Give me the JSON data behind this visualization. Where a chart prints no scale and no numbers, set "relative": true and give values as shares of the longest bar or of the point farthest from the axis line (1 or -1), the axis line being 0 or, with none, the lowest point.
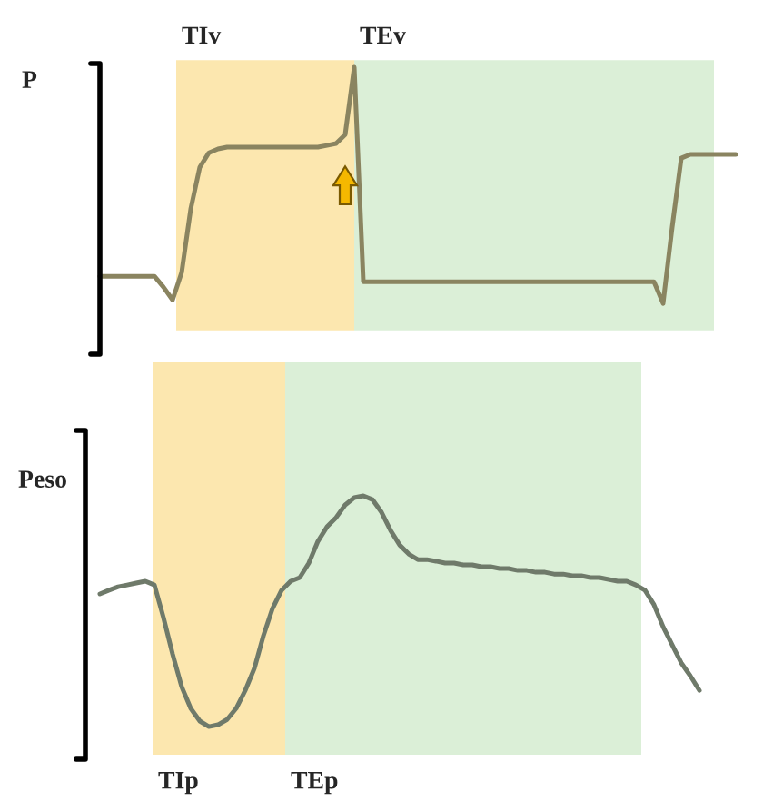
{
  "chart_data": [
    {
      "type": "line",
      "relative": true,
      "ylabel": "P",
      "annotations": [
        "TIv",
        "TEv"
      ],
      "categories": [
        null,
        null,
        null,
        null,
        null,
        null,
        null,
        null,
        null,
        null,
        null,
        null,
        null,
        null,
        null,
        null,
        null,
        null,
        null,
        null,
        null,
        null,
        null,
        null,
        null,
        null,
        null,
        null,
        null,
        null,
        null,
        null,
        null,
        null,
        null,
        null,
        null,
        null,
        null,
        null,
        null,
        null,
        null,
        null,
        null,
        null,
        null,
        null,
        null,
        null,
        null,
        null,
        null,
        null,
        null,
        null,
        null,
        null,
        null,
        null,
        null,
        null,
        null,
        null,
        null,
        null,
        null,
        null,
        null,
        null,
        null
      ],
      "series": [
        {
          "color": "#8a8460",
          "values": [
            0.115,
            0.115,
            0.115,
            0.115,
            0.115,
            0.115,
            0.115,
            0.069,
            0.015,
            0.131,
            0.4,
            0.577,
            0.638,
            0.654,
            0.662,
            0.662,
            0.662,
            0.662,
            0.662,
            0.662,
            0.662,
            0.662,
            0.662,
            0.662,
            0.662,
            0.669,
            0.677,
            0.715,
            1.0,
            0.092,
            0.092,
            0.092,
            0.092,
            0.092,
            0.092,
            0.092,
            0.092,
            0.092,
            0.092,
            0.092,
            0.092,
            0.092,
            0.092,
            0.092,
            0.092,
            0.092,
            0.092,
            0.092,
            0.092,
            0.092,
            0.092,
            0.092,
            0.092,
            0.092,
            0.092,
            0.092,
            0.092,
            0.092,
            0.092,
            0.092,
            0.092,
            0.092,
            0,
            0.323,
            0.615,
            0.631,
            0.631,
            0.631,
            0.631,
            0.631,
            0.631
          ]
        }
      ]
    },
    {
      "type": "line",
      "relative": true,
      "ylabel": "Peso",
      "annotations": [
        "TIp",
        "TEp"
      ],
      "categories": [
        null,
        null,
        null,
        null,
        null,
        null,
        null,
        null,
        null,
        null,
        null,
        null,
        null,
        null,
        null,
        null,
        null,
        null,
        null,
        null,
        null,
        null,
        null,
        null,
        null,
        null,
        null,
        null,
        null,
        null,
        null,
        null,
        null,
        null,
        null,
        null,
        null,
        null,
        null,
        null,
        null,
        null,
        null,
        null,
        null,
        null,
        null,
        null,
        null,
        null,
        null,
        null,
        null,
        null,
        null,
        null,
        null,
        null,
        null,
        null,
        null,
        null,
        null,
        null,
        null,
        null,
        null
      ],
      "series": [
        {
          "color": "#6f7a6a",
          "values": [
            0.575,
            0.591,
            0.606,
            0.614,
            0.622,
            0.63,
            0.614,
            0.472,
            0.315,
            0.173,
            0.079,
            0.024,
            0,
            0.008,
            0.031,
            0.079,
            0.157,
            0.252,
            0.394,
            0.512,
            0.591,
            0.63,
            0.646,
            0.709,
            0.803,
            0.866,
            0.906,
            0.961,
            0.992,
            1.0,
            0.984,
            0.929,
            0.85,
            0.787,
            0.748,
            0.724,
            0.724,
            0.717,
            0.709,
            0.709,
            0.701,
            0.701,
            0.693,
            0.693,
            0.685,
            0.685,
            0.677,
            0.677,
            0.669,
            0.669,
            0.661,
            0.661,
            0.654,
            0.654,
            0.646,
            0.646,
            0.638,
            0.63,
            0.63,
            0.614,
            0.591,
            0.528,
            0.433,
            0.354,
            0.276,
            0.22,
            0.157
          ]
        }
      ]
    }
  ]
}
